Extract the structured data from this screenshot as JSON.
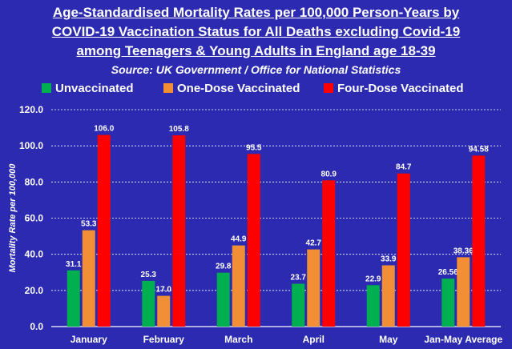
{
  "chart_data": {
    "type": "bar",
    "title_lines": [
      "Age-Standardised Mortality Rates per 100,000 Person-Years by",
      "COVID-19 Vaccination Status for All Deaths excluding Covid-19",
      "among Teenagers & Young Adults in England age 18-39"
    ],
    "subtitle": "Source: UK Government / Office for National Statistics",
    "xlabel": "",
    "ylabel": "Mortality Rate per 100,000",
    "ylim": [
      0,
      120
    ],
    "yticks": [
      "0.0",
      "20.0",
      "40.0",
      "60.0",
      "80.0",
      "100.0",
      "120.0"
    ],
    "categories": [
      "January",
      "February",
      "March",
      "April",
      "May",
      "Jan-May Average"
    ],
    "legend_position": "top",
    "series": [
      {
        "name": "Unvaccinated",
        "color": "#00b050",
        "values": [
          31.1,
          25.3,
          29.8,
          23.7,
          22.9,
          26.56
        ],
        "labels": [
          "31.1",
          "25.3",
          "29.8",
          "23.7",
          "22.9",
          "26.56"
        ]
      },
      {
        "name": "One-Dose Vaccinated",
        "color": "#f28e35",
        "values": [
          53.3,
          17.0,
          44.9,
          42.7,
          33.9,
          38.36
        ],
        "labels": [
          "53.3",
          "17.0",
          "44.9",
          "42.7",
          "33.9",
          "38.36"
        ]
      },
      {
        "name": "Four-Dose Vaccinated",
        "color": "#ff0000",
        "values": [
          106.0,
          105.8,
          95.5,
          80.9,
          84.7,
          94.58
        ],
        "labels": [
          "106.0",
          "105.8",
          "95.5",
          "80.9",
          "84.7",
          "94.58"
        ]
      }
    ]
  },
  "colors": {
    "background": "#2b2ab0",
    "text": "#ffffff",
    "gridline": "#ffffff"
  }
}
